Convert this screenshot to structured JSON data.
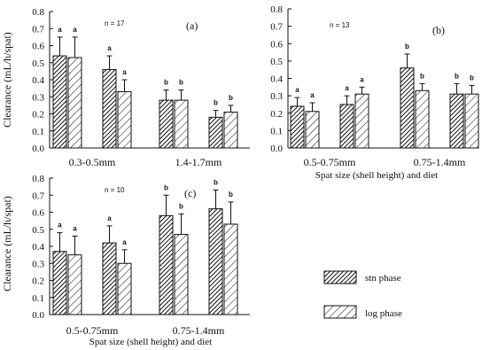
{
  "figure": {
    "legend": {
      "stn_label": "stn phase",
      "log_label": "log phase"
    }
  },
  "chart_data": [
    {
      "type": "bar",
      "panel_label": "(a)",
      "n_label": "n = 17",
      "ylabel": "Clearance (mL/h/spat)",
      "xlabel": "",
      "ylim": [
        0,
        0.8
      ],
      "yticks": [
        "0.0",
        "0.1",
        "0.2",
        "0.3",
        "0.4",
        "0.5",
        "0.6",
        "0.7",
        "0.8"
      ],
      "groups": [
        {
          "label": "0.3-0.5mm",
          "bars": [
            {
              "phase": "stn",
              "value": 0.54,
              "error": 0.11,
              "letter": "a"
            },
            {
              "phase": "log",
              "value": 0.53,
              "error": 0.12,
              "letter": "a"
            },
            {
              "phase": "stn",
              "value": 0.46,
              "error": 0.08,
              "letter": "a"
            },
            {
              "phase": "log",
              "value": 0.33,
              "error": 0.07,
              "letter": "a"
            }
          ]
        },
        {
          "label": "1.4-1.7mm",
          "bars": [
            {
              "phase": "stn",
              "value": 0.28,
              "error": 0.06,
              "letter": "b"
            },
            {
              "phase": "log",
              "value": 0.28,
              "error": 0.06,
              "letter": "b"
            },
            {
              "phase": "stn",
              "value": 0.18,
              "error": 0.04,
              "letter": "b"
            },
            {
              "phase": "log",
              "value": 0.21,
              "error": 0.04,
              "letter": "b"
            }
          ]
        }
      ]
    },
    {
      "type": "bar",
      "panel_label": "(b)",
      "n_label": "n = 13",
      "ylabel": "",
      "xlabel": "Spat size (shell height) and diet",
      "ylim": [
        0,
        0.8
      ],
      "yticks": [
        "0.0",
        "0.1",
        "0.2",
        "0.3",
        "0.4",
        "0.5",
        "0.6",
        "0.7",
        "0.8"
      ],
      "groups": [
        {
          "label": "0.5-0.75mm",
          "bars": [
            {
              "phase": "stn",
              "value": 0.24,
              "error": 0.05,
              "letter": "a"
            },
            {
              "phase": "log",
              "value": 0.21,
              "error": 0.05,
              "letter": "a"
            },
            {
              "phase": "stn",
              "value": 0.25,
              "error": 0.05,
              "letter": "a"
            },
            {
              "phase": "log",
              "value": 0.31,
              "error": 0.04,
              "letter": "a"
            }
          ]
        },
        {
          "label": "0.75-1.4mm",
          "bars": [
            {
              "phase": "stn",
              "value": 0.46,
              "error": 0.08,
              "letter": "b"
            },
            {
              "phase": "log",
              "value": 0.33,
              "error": 0.04,
              "letter": "b"
            },
            {
              "phase": "stn",
              "value": 0.31,
              "error": 0.06,
              "letter": "b"
            },
            {
              "phase": "log",
              "value": 0.31,
              "error": 0.05,
              "letter": "b"
            }
          ]
        }
      ]
    },
    {
      "type": "bar",
      "panel_label": "(c)",
      "n_label": "n = 10",
      "ylabel": "Clearance (mL/h/spat)",
      "xlabel": "Spat size (shell height) and diet",
      "ylim": [
        0,
        0.8
      ],
      "yticks": [
        "0.0",
        "0.1",
        "0.2",
        "0.3",
        "0.4",
        "0.5",
        "0.6",
        "0.7",
        "0.8"
      ],
      "groups": [
        {
          "label": "0.5-0.75mm",
          "bars": [
            {
              "phase": "stn",
              "value": 0.37,
              "error": 0.11,
              "letter": "a"
            },
            {
              "phase": "log",
              "value": 0.35,
              "error": 0.11,
              "letter": "a"
            },
            {
              "phase": "stn",
              "value": 0.42,
              "error": 0.1,
              "letter": "a"
            },
            {
              "phase": "log",
              "value": 0.3,
              "error": 0.08,
              "letter": "a"
            }
          ]
        },
        {
          "label": "0.75-1.4mm",
          "bars": [
            {
              "phase": "stn",
              "value": 0.58,
              "error": 0.12,
              "letter": "b"
            },
            {
              "phase": "log",
              "value": 0.47,
              "error": 0.12,
              "letter": "b"
            },
            {
              "phase": "stn",
              "value": 0.62,
              "error": 0.11,
              "letter": "b"
            },
            {
              "phase": "log",
              "value": 0.53,
              "error": 0.13,
              "letter": "b"
            }
          ]
        }
      ]
    }
  ]
}
